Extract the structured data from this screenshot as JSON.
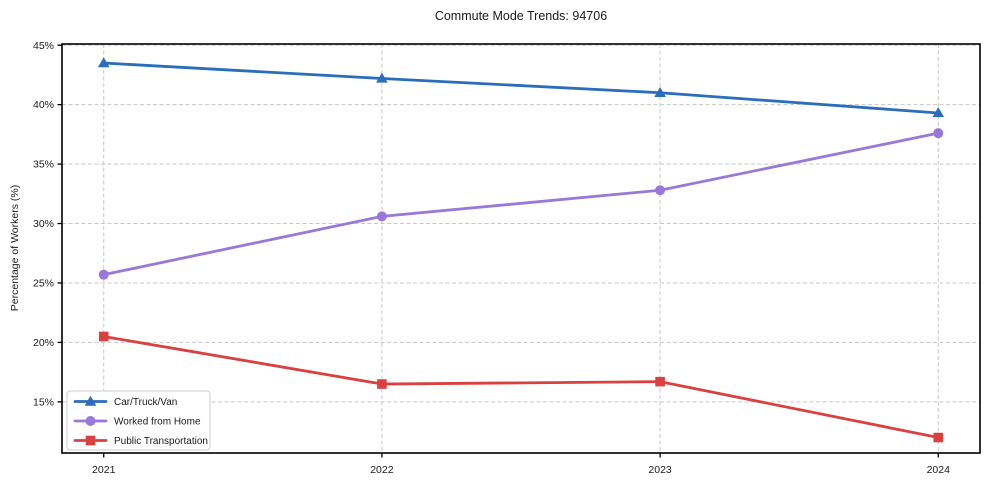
{
  "chart_data": {
    "type": "line",
    "title": "Commute Mode Trends: 94706",
    "xlabel": "",
    "ylabel": "Percentage of Workers (%)",
    "x": [
      2021,
      2022,
      2023,
      2024
    ],
    "x_tick_labels": [
      "2021",
      "2022",
      "2023",
      "2024"
    ],
    "y_ticks": [
      15,
      20,
      25,
      30,
      35,
      40,
      45
    ],
    "y_tick_labels": [
      "15%",
      "20%",
      "25%",
      "30%",
      "35%",
      "40%",
      "45%"
    ],
    "xlim": [
      2020.85,
      2024.15
    ],
    "ylim": [
      10.7,
      45.1
    ],
    "grid": true,
    "grid_style": "dashed",
    "legend_position": "lower-left",
    "series": [
      {
        "name": "Car/Truck/Van",
        "color": "#2a6ebb",
        "marker": "triangle",
        "values": [
          43.5,
          42.2,
          41.0,
          39.3
        ]
      },
      {
        "name": "Worked from Home",
        "color": "#9878d8",
        "marker": "circle",
        "values": [
          25.7,
          30.6,
          32.8,
          37.6
        ]
      },
      {
        "name": "Public Transportation",
        "color": "#d94040",
        "marker": "square",
        "values": [
          20.5,
          16.5,
          16.7,
          12.0
        ]
      }
    ]
  },
  "colors": {
    "grid": "#c8c8c8",
    "frame": "#000000",
    "tick_text": "#1a1a1a",
    "legend_border": "#cccccc",
    "background": "#ffffff"
  }
}
